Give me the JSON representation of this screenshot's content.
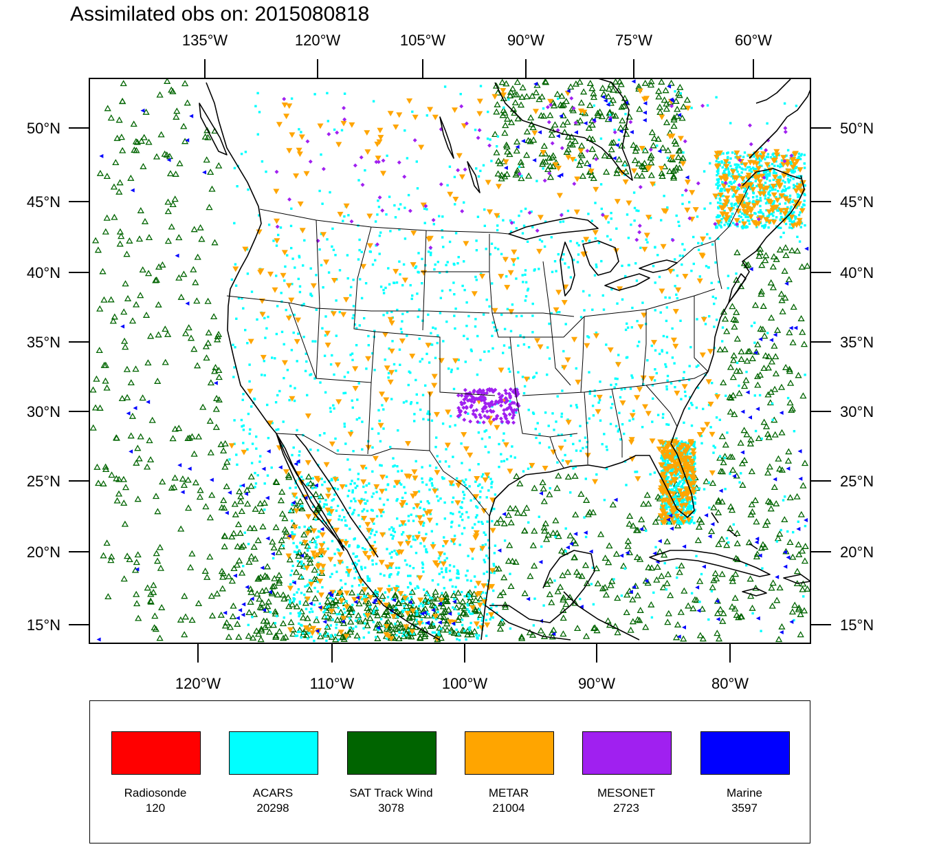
{
  "title": "Assimilated obs on: 2015080818",
  "axes": {
    "top_lon_labels": [
      "135°W",
      "120°W",
      "105°W",
      "90°W",
      "75°W",
      "60°W"
    ],
    "bottom_lon_labels": [
      "120°W",
      "110°W",
      "100°W",
      "90°W",
      "80°W"
    ],
    "lat_labels": [
      "50°N",
      "45°N",
      "40°N",
      "35°N",
      "30°N",
      "25°N",
      "20°N",
      "15°N"
    ]
  },
  "legend": [
    {
      "name": "Radiosonde",
      "count": "120",
      "color": "#ff0000"
    },
    {
      "name": "ACARS",
      "count": "20298",
      "color": "#00ffff"
    },
    {
      "name": "SAT Track Wind",
      "count": "3078",
      "color": "#006400"
    },
    {
      "name": "METAR",
      "count": "21004",
      "color": "#ffa500"
    },
    {
      "name": "MESONET",
      "count": "2723",
      "color": "#a020f0"
    },
    {
      "name": "Marine",
      "count": "3597",
      "color": "#0000ff"
    }
  ],
  "marker_colors": {
    "acars": "#00ffff",
    "sat_track_wind": "#006400",
    "metar": "#ffa500",
    "mesonet": "#a020f0",
    "marine": "#0000ff",
    "coastline": "#000000",
    "state_border": "#000000"
  }
}
